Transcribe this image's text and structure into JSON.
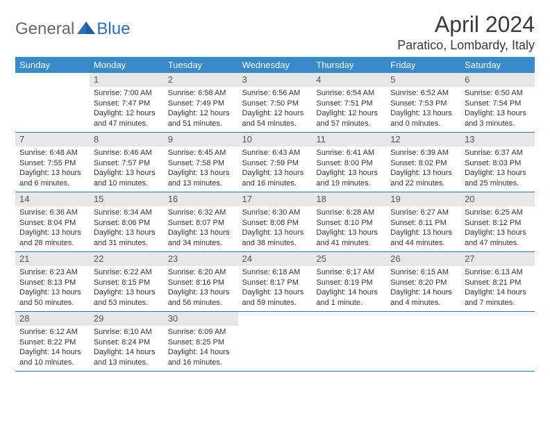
{
  "logo": {
    "text1": "General",
    "text2": "Blue"
  },
  "title": "April 2024",
  "location": "Paratico, Lombardy, Italy",
  "colors": {
    "header_bg": "#3a8ac9",
    "header_text": "#ffffff",
    "daynum_bg": "#e7e7e7",
    "daynum_text": "#555555",
    "border": "#2f6fa7",
    "logo_gray": "#6a6a6a",
    "logo_blue": "#2a6fb5"
  },
  "weekdays": [
    "Sunday",
    "Monday",
    "Tuesday",
    "Wednesday",
    "Thursday",
    "Friday",
    "Saturday"
  ],
  "weeks": [
    [
      null,
      {
        "n": "1",
        "sr": "Sunrise: 7:00 AM",
        "ss": "Sunset: 7:47 PM",
        "dl": "Daylight: 12 hours and 47 minutes."
      },
      {
        "n": "2",
        "sr": "Sunrise: 6:58 AM",
        "ss": "Sunset: 7:49 PM",
        "dl": "Daylight: 12 hours and 51 minutes."
      },
      {
        "n": "3",
        "sr": "Sunrise: 6:56 AM",
        "ss": "Sunset: 7:50 PM",
        "dl": "Daylight: 12 hours and 54 minutes."
      },
      {
        "n": "4",
        "sr": "Sunrise: 6:54 AM",
        "ss": "Sunset: 7:51 PM",
        "dl": "Daylight: 12 hours and 57 minutes."
      },
      {
        "n": "5",
        "sr": "Sunrise: 6:52 AM",
        "ss": "Sunset: 7:53 PM",
        "dl": "Daylight: 13 hours and 0 minutes."
      },
      {
        "n": "6",
        "sr": "Sunrise: 6:50 AM",
        "ss": "Sunset: 7:54 PM",
        "dl": "Daylight: 13 hours and 3 minutes."
      }
    ],
    [
      {
        "n": "7",
        "sr": "Sunrise: 6:48 AM",
        "ss": "Sunset: 7:55 PM",
        "dl": "Daylight: 13 hours and 6 minutes."
      },
      {
        "n": "8",
        "sr": "Sunrise: 6:46 AM",
        "ss": "Sunset: 7:57 PM",
        "dl": "Daylight: 13 hours and 10 minutes."
      },
      {
        "n": "9",
        "sr": "Sunrise: 6:45 AM",
        "ss": "Sunset: 7:58 PM",
        "dl": "Daylight: 13 hours and 13 minutes."
      },
      {
        "n": "10",
        "sr": "Sunrise: 6:43 AM",
        "ss": "Sunset: 7:59 PM",
        "dl": "Daylight: 13 hours and 16 minutes."
      },
      {
        "n": "11",
        "sr": "Sunrise: 6:41 AM",
        "ss": "Sunset: 8:00 PM",
        "dl": "Daylight: 13 hours and 19 minutes."
      },
      {
        "n": "12",
        "sr": "Sunrise: 6:39 AM",
        "ss": "Sunset: 8:02 PM",
        "dl": "Daylight: 13 hours and 22 minutes."
      },
      {
        "n": "13",
        "sr": "Sunrise: 6:37 AM",
        "ss": "Sunset: 8:03 PM",
        "dl": "Daylight: 13 hours and 25 minutes."
      }
    ],
    [
      {
        "n": "14",
        "sr": "Sunrise: 6:36 AM",
        "ss": "Sunset: 8:04 PM",
        "dl": "Daylight: 13 hours and 28 minutes."
      },
      {
        "n": "15",
        "sr": "Sunrise: 6:34 AM",
        "ss": "Sunset: 8:06 PM",
        "dl": "Daylight: 13 hours and 31 minutes."
      },
      {
        "n": "16",
        "sr": "Sunrise: 6:32 AM",
        "ss": "Sunset: 8:07 PM",
        "dl": "Daylight: 13 hours and 34 minutes."
      },
      {
        "n": "17",
        "sr": "Sunrise: 6:30 AM",
        "ss": "Sunset: 8:08 PM",
        "dl": "Daylight: 13 hours and 38 minutes."
      },
      {
        "n": "18",
        "sr": "Sunrise: 6:28 AM",
        "ss": "Sunset: 8:10 PM",
        "dl": "Daylight: 13 hours and 41 minutes."
      },
      {
        "n": "19",
        "sr": "Sunrise: 6:27 AM",
        "ss": "Sunset: 8:11 PM",
        "dl": "Daylight: 13 hours and 44 minutes."
      },
      {
        "n": "20",
        "sr": "Sunrise: 6:25 AM",
        "ss": "Sunset: 8:12 PM",
        "dl": "Daylight: 13 hours and 47 minutes."
      }
    ],
    [
      {
        "n": "21",
        "sr": "Sunrise: 6:23 AM",
        "ss": "Sunset: 8:13 PM",
        "dl": "Daylight: 13 hours and 50 minutes."
      },
      {
        "n": "22",
        "sr": "Sunrise: 6:22 AM",
        "ss": "Sunset: 8:15 PM",
        "dl": "Daylight: 13 hours and 53 minutes."
      },
      {
        "n": "23",
        "sr": "Sunrise: 6:20 AM",
        "ss": "Sunset: 8:16 PM",
        "dl": "Daylight: 13 hours and 56 minutes."
      },
      {
        "n": "24",
        "sr": "Sunrise: 6:18 AM",
        "ss": "Sunset: 8:17 PM",
        "dl": "Daylight: 13 hours and 59 minutes."
      },
      {
        "n": "25",
        "sr": "Sunrise: 6:17 AM",
        "ss": "Sunset: 8:19 PM",
        "dl": "Daylight: 14 hours and 1 minute."
      },
      {
        "n": "26",
        "sr": "Sunrise: 6:15 AM",
        "ss": "Sunset: 8:20 PM",
        "dl": "Daylight: 14 hours and 4 minutes."
      },
      {
        "n": "27",
        "sr": "Sunrise: 6:13 AM",
        "ss": "Sunset: 8:21 PM",
        "dl": "Daylight: 14 hours and 7 minutes."
      }
    ],
    [
      {
        "n": "28",
        "sr": "Sunrise: 6:12 AM",
        "ss": "Sunset: 8:22 PM",
        "dl": "Daylight: 14 hours and 10 minutes."
      },
      {
        "n": "29",
        "sr": "Sunrise: 6:10 AM",
        "ss": "Sunset: 8:24 PM",
        "dl": "Daylight: 14 hours and 13 minutes."
      },
      {
        "n": "30",
        "sr": "Sunrise: 6:09 AM",
        "ss": "Sunset: 8:25 PM",
        "dl": "Daylight: 14 hours and 16 minutes."
      },
      null,
      null,
      null,
      null
    ]
  ]
}
